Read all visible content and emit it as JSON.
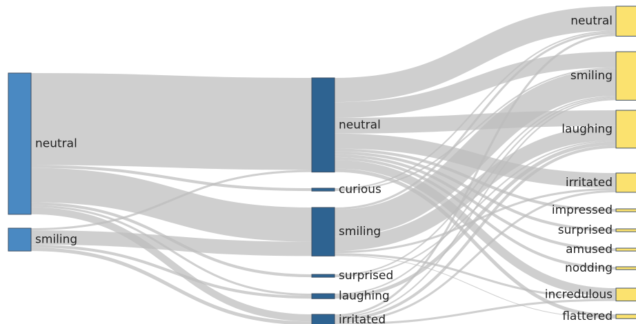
{
  "sankey": {
    "colors": {
      "stage1": "#4a89c2",
      "stage2": "#2e6391",
      "stage3": "#fbe26f",
      "link": "#bdbdbd"
    },
    "columns": [
      {
        "nodes": [
          {
            "id": "s1-neutral",
            "label": "neutral"
          },
          {
            "id": "s1-smiling",
            "label": "smiling"
          }
        ]
      },
      {
        "nodes": [
          {
            "id": "s2-neutral",
            "label": "neutral"
          },
          {
            "id": "s2-curious",
            "label": "curious"
          },
          {
            "id": "s2-smiling",
            "label": "smiling"
          },
          {
            "id": "s2-surprised",
            "label": "surprised"
          },
          {
            "id": "s2-laughing",
            "label": "laughing"
          },
          {
            "id": "s2-irritated",
            "label": "irritated"
          }
        ]
      },
      {
        "nodes": [
          {
            "id": "s3-neutral",
            "label": "neutral"
          },
          {
            "id": "s3-smiling",
            "label": "smiling"
          },
          {
            "id": "s3-laughing",
            "label": "laughing"
          },
          {
            "id": "s3-irritated",
            "label": "irritated"
          },
          {
            "id": "s3-impressed",
            "label": "impressed"
          },
          {
            "id": "s3-surprised",
            "label": "surprised"
          },
          {
            "id": "s3-amused",
            "label": "amused"
          },
          {
            "id": "s3-nodding",
            "label": "nodding"
          },
          {
            "id": "s3-incredulous",
            "label": "incredulous"
          },
          {
            "id": "s3-flattered",
            "label": "flattered"
          }
        ]
      }
    ],
    "links": [
      {
        "source": "s1-neutral",
        "target": "s2-neutral",
        "value": 129
      },
      {
        "source": "s1-neutral",
        "target": "s2-smiling",
        "value": 48
      },
      {
        "source": "s1-neutral",
        "target": "s2-curious",
        "value": 4
      },
      {
        "source": "s1-neutral",
        "target": "s2-surprised",
        "value": 4
      },
      {
        "source": "s1-neutral",
        "target": "s2-laughing",
        "value": 3
      },
      {
        "source": "s1-neutral",
        "target": "s2-irritated",
        "value": 10
      },
      {
        "source": "s1-smiling",
        "target": "s2-smiling",
        "value": 20
      },
      {
        "source": "s1-smiling",
        "target": "s2-neutral",
        "value": 3
      },
      {
        "source": "s1-smiling",
        "target": "s2-laughing",
        "value": 4
      },
      {
        "source": "s1-smiling",
        "target": "s2-irritated",
        "value": 5
      },
      {
        "source": "s2-neutral",
        "target": "s3-neutral",
        "value": 34
      },
      {
        "source": "s2-neutral",
        "target": "s3-smiling",
        "value": 22
      },
      {
        "source": "s2-neutral",
        "target": "s3-laughing",
        "value": 22
      },
      {
        "source": "s2-neutral",
        "target": "s3-irritated",
        "value": 21
      },
      {
        "source": "s2-neutral",
        "target": "s3-impressed",
        "value": 4
      },
      {
        "source": "s2-neutral",
        "target": "s3-surprised",
        "value": 4
      },
      {
        "source": "s2-neutral",
        "target": "s3-amused",
        "value": 4
      },
      {
        "source": "s2-neutral",
        "target": "s3-nodding",
        "value": 4
      },
      {
        "source": "s2-neutral",
        "target": "s3-incredulous",
        "value": 12
      },
      {
        "source": "s2-neutral",
        "target": "s3-flattered",
        "value": 5
      },
      {
        "source": "s2-curious",
        "target": "s3-neutral",
        "value": 2
      },
      {
        "source": "s2-curious",
        "target": "s3-smiling",
        "value": 2
      },
      {
        "source": "s2-smiling",
        "target": "s3-smiling",
        "value": 38
      },
      {
        "source": "s2-smiling",
        "target": "s3-laughing",
        "value": 20
      },
      {
        "source": "s2-smiling",
        "target": "s3-neutral",
        "value": 3
      },
      {
        "source": "s2-smiling",
        "target": "s3-irritated",
        "value": 3
      },
      {
        "source": "s2-smiling",
        "target": "s3-incredulous",
        "value": 3
      },
      {
        "source": "s2-smiling",
        "target": "s3-flattered",
        "value": 1
      },
      {
        "source": "s2-surprised",
        "target": "s3-smiling",
        "value": 2
      },
      {
        "source": "s2-surprised",
        "target": "s3-laughing",
        "value": 2
      },
      {
        "source": "s2-laughing",
        "target": "s3-laughing",
        "value": 5
      },
      {
        "source": "s2-laughing",
        "target": "s3-smiling",
        "value": 2
      },
      {
        "source": "s2-irritated",
        "target": "s3-neutral",
        "value": 3
      },
      {
        "source": "s2-irritated",
        "target": "s3-smiling",
        "value": 2
      },
      {
        "source": "s2-irritated",
        "target": "s3-laughing",
        "value": 4
      },
      {
        "source": "s2-irritated",
        "target": "s3-irritated",
        "value": 3
      },
      {
        "source": "s2-irritated",
        "target": "s3-incredulous",
        "value": 3
      }
    ]
  }
}
